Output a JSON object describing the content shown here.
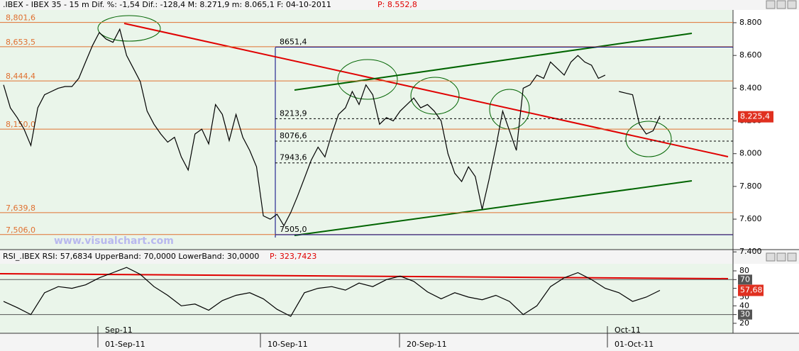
{
  "header": {
    "title": ".IBEX - IBEX 35 -   15 m Dif. %: -1,54 Dif.: -128,4 M: 8.271,9 m: 8.065,1 F: 04-10-2011",
    "price_label": "P: 8.552,8"
  },
  "watermark": "www.visualchart.com",
  "chart_data": [
    {
      "type": "line",
      "color": "#000000",
      "values": [
        8420,
        8280,
        8220,
        8150,
        8050,
        8280,
        8360,
        8380,
        8400,
        8410,
        8410,
        8460,
        8560,
        8660,
        8740,
        8700,
        8680,
        8760,
        8600,
        8520,
        8440,
        8260,
        8180,
        8120,
        8070,
        8100,
        7980,
        7900,
        8120,
        8150,
        8060,
        8300,
        8240,
        8080,
        8240,
        8100,
        8020,
        7920,
        7620,
        7600,
        7630,
        7560,
        7640,
        7740,
        7850,
        7960,
        8040,
        7980,
        8120,
        8240,
        8280,
        8380,
        8300,
        8420,
        8360,
        8180,
        8220,
        8200,
        8260,
        8300,
        8340,
        8280,
        8300,
        8260,
        8200,
        8000,
        7880,
        7830,
        7920,
        7860,
        7660,
        7840,
        8040,
        8260,
        8140,
        8020,
        8400,
        8420,
        8480,
        8460,
        8560,
        8520,
        8480,
        8560,
        8600,
        8560,
        8540,
        8460,
        8480,
        null,
        8380,
        8370,
        8360,
        8180,
        8120,
        8140,
        8230
      ],
      "ylim": [
        7414,
        8878
      ],
      "yticks": [
        {
          "value": 8800,
          "label": "8.800"
        },
        {
          "value": 8600,
          "label": "8.600"
        },
        {
          "value": 8400,
          "label": "8.400"
        },
        {
          "value": 8200,
          "label": "8.200"
        },
        {
          "value": 8000,
          "label": "8.000"
        },
        {
          "value": 7800,
          "label": "7.800"
        },
        {
          "value": 7600,
          "label": "7.600"
        },
        {
          "value": 7400,
          "label": "7.400"
        }
      ],
      "levels": [
        {
          "value": 8801.6,
          "label": "8,801,6"
        },
        {
          "value": 8653.5,
          "label": "8,653,5"
        },
        {
          "value": 8444.4,
          "label": "8,444,4"
        },
        {
          "value": 8150,
          "label": "8,150,0"
        },
        {
          "value": 7639.8,
          "label": "7,639,8"
        },
        {
          "value": 7506,
          "label": "7,506,0"
        }
      ],
      "dashed_levels": [
        {
          "value": 8213.9,
          "label": "8213,9"
        },
        {
          "value": 8076.6,
          "label": "8076,6"
        },
        {
          "value": 7943.6,
          "label": "7943,6"
        }
      ],
      "blue_levels": [
        {
          "value": 8651.4,
          "label": "8651,4"
        },
        {
          "value": 7505,
          "label": "7505,0"
        }
      ],
      "last": {
        "value": 8225.4,
        "label": "8.225,4"
      }
    },
    {
      "type": "line",
      "color": "#000000",
      "title": "RSI_.IBEX RSI: 57,6834 UpperBand: 70,0000 LowerBand: 30,0000",
      "price_label": "P: 323,7423",
      "values": [
        45,
        38,
        30,
        55,
        62,
        60,
        64,
        72,
        78,
        84,
        76,
        62,
        52,
        40,
        42,
        35,
        46,
        52,
        55,
        48,
        36,
        28,
        55,
        60,
        62,
        58,
        66,
        62,
        70,
        74,
        68,
        56,
        48,
        55,
        50,
        47,
        52,
        45,
        30,
        40,
        62,
        72,
        78,
        70,
        60,
        55,
        45,
        50,
        57.68
      ],
      "ylim": [
        8.6,
        88.1
      ],
      "yticks": [
        80,
        70,
        60,
        50,
        40,
        30,
        20
      ],
      "upper_band": 70,
      "lower_band": 30,
      "last": {
        "value": 57.68,
        "label": "57,68"
      },
      "date_labels": [
        "Sep-11",
        "01-Sep-11",
        "10-Sep-11",
        "20-Sep-11",
        "Oct-11",
        "01-Oct-11"
      ]
    }
  ]
}
